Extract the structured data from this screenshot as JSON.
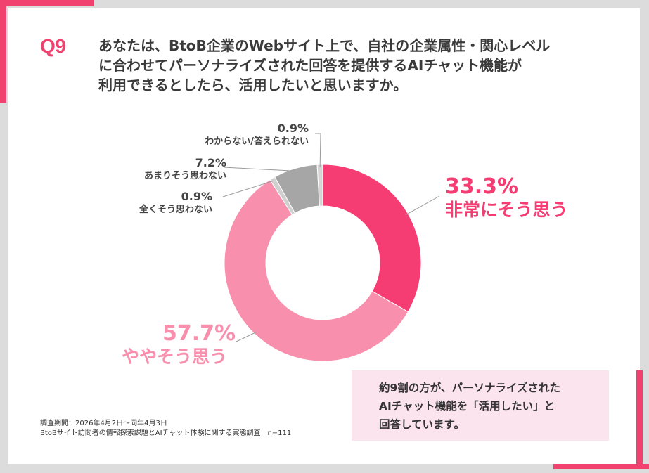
{
  "question": {
    "number": "Q9",
    "lines": [
      "あなたは、BtoB企業のWebサイト上で、自社の企業属性・関心レベル",
      "に合わせてパーソナライズされた回答を提供するAIチャット機能が",
      "利用できるとしたら、活用したいと思いますか。"
    ]
  },
  "chart_data": {
    "type": "pie",
    "donut": true,
    "slices": [
      {
        "label": "非常にそう思う",
        "value": 33.3,
        "pct_text": "33.3%",
        "color": "#f53d73"
      },
      {
        "label": "ややそう思う",
        "value": 57.7,
        "pct_text": "57.7%",
        "color": "#f890ad"
      },
      {
        "label": "全くそう思わない",
        "value": 0.9,
        "pct_text": "0.9%",
        "color": "#d0d0d0"
      },
      {
        "label": "あまりそう思わない",
        "value": 7.2,
        "pct_text": "7.2%",
        "color": "#a6a6a6"
      },
      {
        "label": "わからない/答えられない",
        "value": 0.9,
        "pct_text": "0.9%",
        "color": "#d6d6d6"
      }
    ]
  },
  "note": {
    "lines": [
      "約9割の方が、パーソナライズされた",
      "AIチャット機能を「活用したい」と",
      "回答しています。"
    ]
  },
  "source": {
    "period": "調査期間：2026年4月2日～同年4月3日",
    "survey": "BtoBサイト訪問者の情報探索課題とAIチャット体験に関する実態調査｜n=111"
  },
  "colors": {
    "accent": "#f0416f",
    "note_bg": "#fce4ee"
  }
}
